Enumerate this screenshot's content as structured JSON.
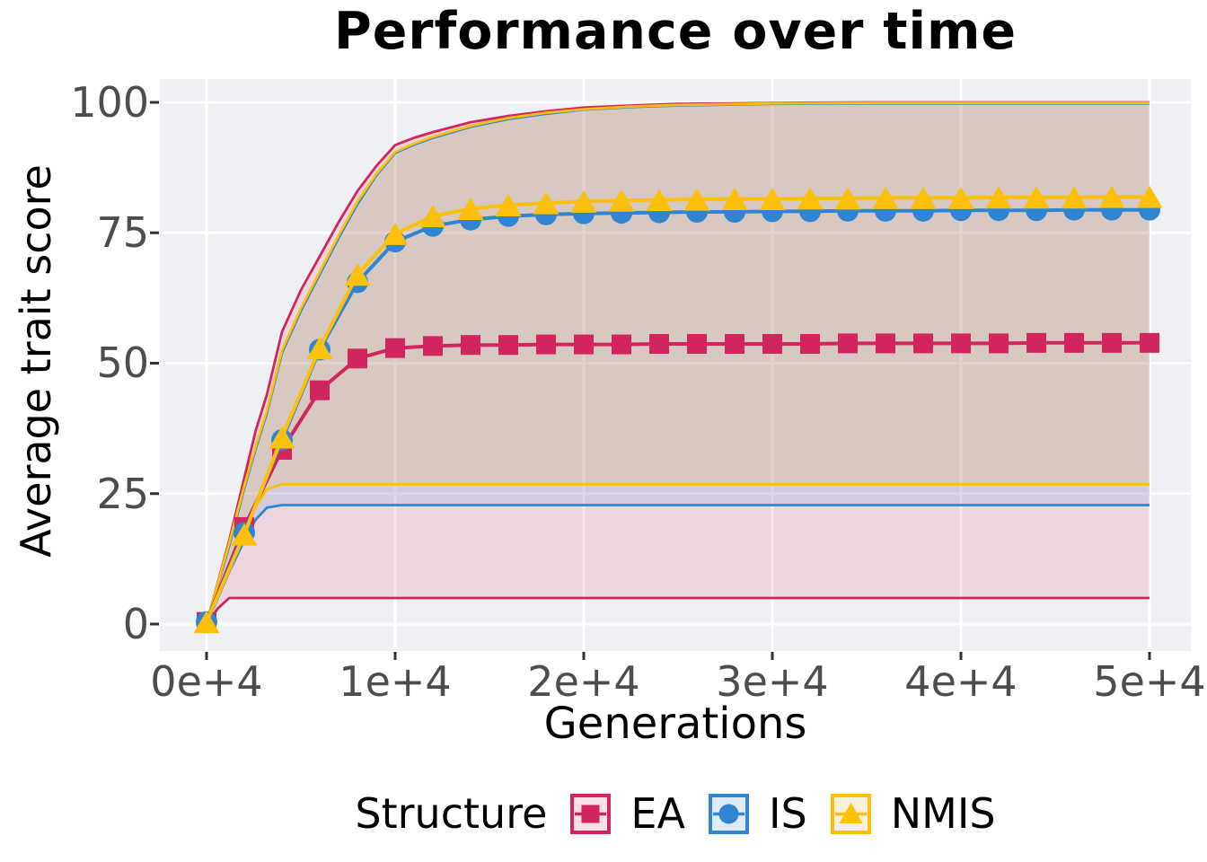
{
  "title": "Performance over time",
  "axes": {
    "x_label": "Generations",
    "y_label": "Average trait score",
    "x_ticks": [
      "0e+4",
      "1e+4",
      "2e+4",
      "3e+4",
      "4e+4",
      "5e+4"
    ],
    "y_ticks": [
      "0",
      "25",
      "50",
      "75",
      "100"
    ]
  },
  "legend": {
    "title": "Structure",
    "entries": [
      {
        "label": "EA",
        "marker": "square",
        "color": "#D2245E"
      },
      {
        "label": "IS",
        "marker": "circle",
        "color": "#2F85D2"
      },
      {
        "label": "NMIS",
        "marker": "triangle",
        "color": "#FCC00A"
      }
    ]
  },
  "colors": {
    "background": "#FFFFFF",
    "panel_background": "#EFF0F4",
    "gridline": "#FFFFFF",
    "tick_mark": "#333333",
    "tick_label": "#4D4D4D",
    "text": "#000000",
    "ea_key_fill": "#F7DEE7",
    "is_key_fill": "#DFEAF6",
    "nmis_key_fill": "#F8F0DA"
  },
  "chart_data": {
    "type": "line",
    "title": "Performance over time",
    "xlabel": "Generations",
    "ylabel": "Average trait score",
    "xlim": [
      0,
      50000
    ],
    "ylim": [
      0,
      100
    ],
    "x_tick_values": [
      0,
      10000,
      20000,
      30000,
      40000,
      50000
    ],
    "y_tick_values": [
      0,
      25,
      50,
      75,
      100
    ],
    "grid": "white major gridlines on gray panel",
    "legend_position": "bottom",
    "x": [
      0,
      2000,
      4000,
      6000,
      8000,
      10000,
      12000,
      14000,
      16000,
      18000,
      20000,
      22000,
      24000,
      26000,
      28000,
      30000,
      32000,
      34000,
      36000,
      38000,
      40000,
      42000,
      44000,
      46000,
      48000,
      50000
    ],
    "band_x": [
      0,
      600,
      1200,
      2000,
      2600,
      3200,
      4000,
      5000,
      6000,
      7000,
      8000,
      9000,
      10000,
      11000,
      12000,
      14000,
      16000,
      18000,
      20000,
      22500,
      25000,
      30000,
      35000,
      50000
    ],
    "series": [
      {
        "name": "EA",
        "marker": "square",
        "color": "#D2245E",
        "band_fill": "rgba(210,36,94,0.13)",
        "values": [
          0.4,
          18.6,
          33.4,
          44.8,
          50.9,
          52.9,
          53.3,
          53.5,
          53.5,
          53.6,
          53.6,
          53.6,
          53.7,
          53.7,
          53.7,
          53.7,
          53.7,
          53.8,
          53.8,
          53.8,
          53.8,
          53.8,
          53.9,
          53.9,
          53.9,
          53.9
        ],
        "band_lower": [
          0,
          3,
          5,
          5,
          5,
          5,
          5,
          5,
          5,
          5,
          5,
          5,
          5,
          5,
          5,
          5,
          5,
          5,
          5,
          5,
          5,
          5,
          5,
          5
        ],
        "band_upper": [
          0,
          8,
          16,
          28,
          37,
          44,
          56,
          64,
          70.5,
          77,
          83,
          87.8,
          91.8,
          93.2,
          94.3,
          96.2,
          97.4,
          98.3,
          99,
          99.4,
          99.7,
          99.9,
          100,
          100
        ]
      },
      {
        "name": "IS",
        "marker": "circle",
        "color": "#2F85D2",
        "band_fill": "rgba(47,133,210,0.13)",
        "values": [
          0.4,
          17.5,
          35.3,
          52.6,
          65.5,
          73.3,
          76.3,
          77.5,
          78.2,
          78.5,
          78.7,
          78.8,
          78.9,
          79,
          79,
          79.1,
          79.1,
          79.2,
          79.2,
          79.2,
          79.3,
          79.3,
          79.3,
          79.4,
          79.4,
          79.4
        ],
        "band_lower": [
          0,
          5,
          10,
          16,
          20,
          22.3,
          22.8,
          22.8,
          22.8,
          22.8,
          22.8,
          22.8,
          22.8,
          22.8,
          22.8,
          22.8,
          22.8,
          22.8,
          22.8,
          22.8,
          22.8,
          22.8,
          22.8,
          22.8
        ],
        "band_upper": [
          0,
          7.5,
          15,
          26,
          33.5,
          40.5,
          52,
          60,
          67,
          74,
          80.5,
          86,
          90.3,
          91.9,
          93.2,
          95.3,
          96.8,
          97.8,
          98.6,
          99.1,
          99.4,
          99.7,
          99.8,
          99.8
        ]
      },
      {
        "name": "NMIS",
        "marker": "triangle",
        "color": "#FCC00A",
        "band_fill": "rgba(252,192,10,0.13)",
        "values": [
          0.4,
          17.2,
          35.8,
          52.9,
          67,
          74.8,
          78.2,
          79.6,
          80.3,
          80.7,
          81,
          81.2,
          81.3,
          81.4,
          81.5,
          81.5,
          81.6,
          81.6,
          81.7,
          81.7,
          81.7,
          81.8,
          81.8,
          81.8,
          81.9,
          81.9
        ],
        "band_lower": [
          0,
          5.5,
          11,
          18,
          22.5,
          25.8,
          26.8,
          26.8,
          26.8,
          26.8,
          26.8,
          26.8,
          26.8,
          26.8,
          26.8,
          26.8,
          26.8,
          26.8,
          26.8,
          26.8,
          26.8,
          26.8,
          26.8,
          26.8
        ],
        "band_upper": [
          0,
          7.8,
          15.5,
          26.5,
          34,
          41,
          52.5,
          60.5,
          67.5,
          74.5,
          81,
          86.3,
          90.5,
          92.1,
          93.4,
          95.5,
          97,
          98,
          98.7,
          99.2,
          99.5,
          99.8,
          99.9,
          99.9
        ]
      }
    ]
  }
}
